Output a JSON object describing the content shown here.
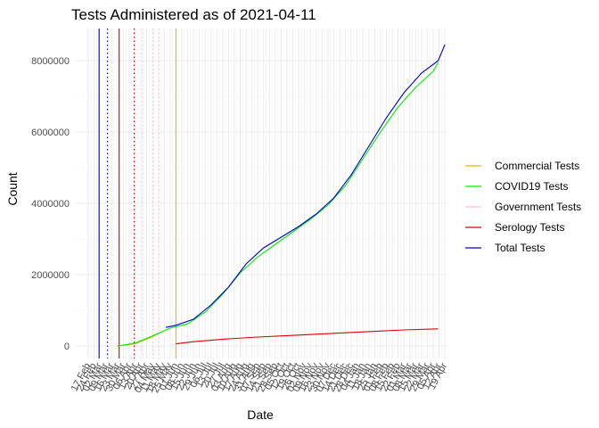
{
  "chart_data": {
    "type": "line",
    "title": "Tests Administered as of 2021-04-11",
    "xlabel": "Date",
    "ylabel": "Count",
    "x_range": [
      "2020-02-01",
      "2021-04-20"
    ],
    "ylim": [
      -350000,
      8900000
    ],
    "y_ticks": [
      0,
      2000000,
      4000000,
      6000000,
      8000000
    ],
    "y_tick_labels": [
      "0",
      "2000000",
      "4000000",
      "6000000",
      "8000000"
    ],
    "x_ticks": [
      "2020-02-17",
      "2020-02-24",
      "2020-03-02",
      "2020-03-09",
      "2020-03-16",
      "2020-03-23",
      "2020-03-30",
      "2020-04-06",
      "2020-04-13",
      "2020-04-20",
      "2020-04-27",
      "2020-05-04",
      "2020-05-11",
      "2020-05-18",
      "2020-05-25",
      "2020-06-01",
      "2020-06-08",
      "2020-06-15",
      "2020-06-22",
      "2020-06-29",
      "2020-07-06",
      "2020-07-13",
      "2020-07-20",
      "2020-07-27",
      "2020-08-03",
      "2020-08-10",
      "2020-08-17",
      "2020-08-24",
      "2020-08-31",
      "2020-09-07",
      "2020-09-14",
      "2020-09-21",
      "2020-09-28",
      "2020-10-05",
      "2020-10-12",
      "2020-10-19",
      "2020-10-26",
      "2020-11-02",
      "2020-11-09",
      "2020-11-16",
      "2020-11-23",
      "2020-11-30",
      "2020-12-07",
      "2020-12-14",
      "2020-12-21",
      "2020-12-28",
      "2021-01-04",
      "2021-01-11",
      "2021-01-18",
      "2021-01-25",
      "2021-02-01",
      "2021-02-08",
      "2021-02-15",
      "2021-02-22",
      "2021-03-01",
      "2021-03-08",
      "2021-03-15",
      "2021-03-22",
      "2021-03-29",
      "2021-04-05",
      "2021-04-12",
      "2021-04-19"
    ],
    "x_tick_labels": [
      "17 Feb",
      "24 Feb",
      "02 Mar",
      "09 Mar",
      "16 Mar",
      "23 Mar",
      "30 Mar",
      "06 Apr",
      "13 Apr",
      "20 Apr",
      "27 Apr",
      "04 May",
      "11 May",
      "18 May",
      "25 May",
      "01 Jun",
      "08 Jun",
      "15 Jun",
      "22 Jun",
      "29 Jun",
      "06 Jul",
      "13 Jul",
      "20 Jul",
      "27 Jul",
      "03 Aug",
      "10 Aug",
      "17 Aug",
      "24 Aug",
      "31 Aug",
      "07 Sep",
      "14 Sep",
      "21 Sep",
      "28 Sep",
      "05 Oct",
      "12 Oct",
      "19 Oct",
      "26 Oct",
      "02 Nov",
      "09 Nov",
      "16 Nov",
      "23 Nov",
      "30 Nov",
      "07 Dec",
      "14 Dec",
      "21 Dec",
      "28 Dec",
      "04 Jan",
      "11 Jan",
      "18 Jan",
      "25 Jan",
      "01 Feb",
      "08 Feb",
      "15 Feb",
      "22 Feb",
      "01 Mar",
      "08 Mar",
      "15 Mar",
      "22 Mar",
      "29 Mar",
      "05 Apr",
      "12 Apr",
      "19 Apr"
    ],
    "grid": true,
    "legend_position": "right",
    "series": [
      {
        "name": "Commercial Tests",
        "color": "#e6b800",
        "style": "solid",
        "points": [
          [
            "2020-03-23",
            0
          ],
          [
            "2020-04-13",
            60000
          ],
          [
            "2020-05-04",
            260000
          ],
          [
            "2020-05-17",
            420000
          ]
        ],
        "vertical_line_at": "2020-06-01"
      },
      {
        "name": "COVID19 Tests",
        "color": "#00ee00",
        "style": "solid",
        "points": [
          [
            "2020-03-23",
            0
          ],
          [
            "2020-04-13",
            80000
          ],
          [
            "2020-05-04",
            280000
          ],
          [
            "2020-05-25",
            500000
          ],
          [
            "2020-06-15",
            620000
          ],
          [
            "2020-07-06",
            950000
          ],
          [
            "2020-07-27",
            1450000
          ],
          [
            "2020-08-17",
            2050000
          ],
          [
            "2020-09-07",
            2500000
          ],
          [
            "2020-09-28",
            2850000
          ],
          [
            "2020-10-19",
            3200000
          ],
          [
            "2020-11-09",
            3550000
          ],
          [
            "2020-11-30",
            3950000
          ],
          [
            "2020-12-21",
            4500000
          ],
          [
            "2021-01-11",
            5250000
          ],
          [
            "2021-02-01",
            6000000
          ],
          [
            "2021-02-22",
            6700000
          ],
          [
            "2021-03-15",
            7250000
          ],
          [
            "2021-04-05",
            7700000
          ],
          [
            "2021-04-11",
            7950000
          ]
        ]
      },
      {
        "name": "Government Tests",
        "color": "#ffc0cb",
        "style": "dotted",
        "vertical_lines_at": [
          "2020-04-22",
          "2020-05-05",
          "2020-05-12"
        ]
      },
      {
        "name": "Serology Tests",
        "color": "#dd0000",
        "style": "solid",
        "points": [
          [
            "2020-06-01",
            60000
          ],
          [
            "2020-06-22",
            120000
          ],
          [
            "2020-07-13",
            160000
          ],
          [
            "2020-08-03",
            200000
          ],
          [
            "2020-09-07",
            250000
          ],
          [
            "2020-10-12",
            290000
          ],
          [
            "2020-11-16",
            330000
          ],
          [
            "2020-12-21",
            370000
          ],
          [
            "2021-01-25",
            410000
          ],
          [
            "2021-03-01",
            450000
          ],
          [
            "2021-04-11",
            480000
          ]
        ],
        "vertical_line_at": "2020-03-25",
        "dotted_line_at": "2020-04-12"
      },
      {
        "name": "Total Tests",
        "color": "#0000cc",
        "style": "solid",
        "points": [
          [
            "2020-05-20",
            520000
          ],
          [
            "2020-06-01",
            580000
          ],
          [
            "2020-06-22",
            750000
          ],
          [
            "2020-07-13",
            1150000
          ],
          [
            "2020-08-03",
            1650000
          ],
          [
            "2020-08-24",
            2300000
          ],
          [
            "2020-09-14",
            2750000
          ],
          [
            "2020-10-05",
            3050000
          ],
          [
            "2020-10-26",
            3350000
          ],
          [
            "2020-11-16",
            3700000
          ],
          [
            "2020-12-07",
            4150000
          ],
          [
            "2020-12-28",
            4800000
          ],
          [
            "2021-01-18",
            5600000
          ],
          [
            "2021-02-08",
            6400000
          ],
          [
            "2021-03-01",
            7100000
          ],
          [
            "2021-03-22",
            7650000
          ],
          [
            "2021-04-11",
            8000000
          ],
          [
            "2021-04-19",
            8450000
          ]
        ],
        "vertical_line_at": "2020-03-01",
        "dotted_line_at": "2020-03-11"
      }
    ]
  }
}
